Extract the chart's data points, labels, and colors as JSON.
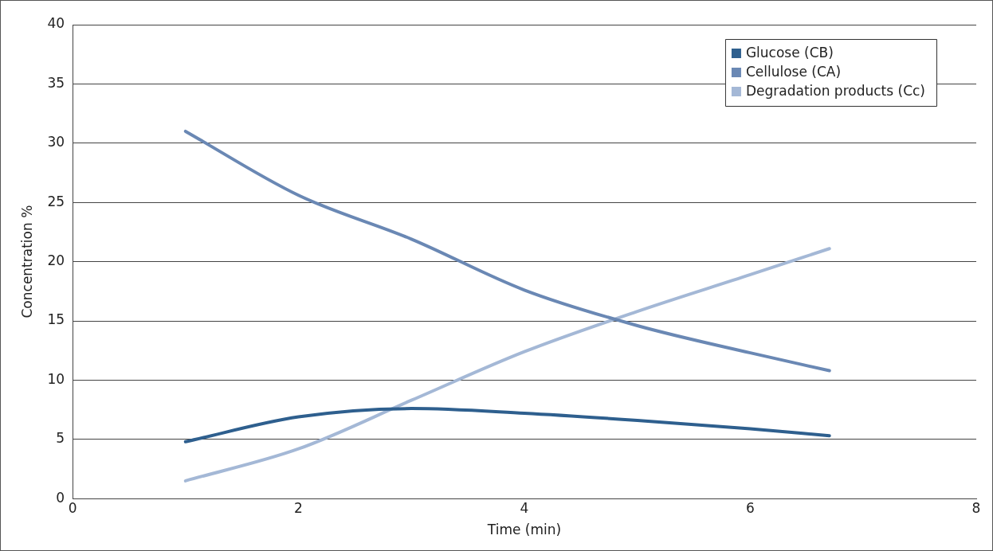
{
  "chart_data": {
    "type": "line",
    "xlabel": "Time (min)",
    "ylabel": "Concentration %",
    "xlim": [
      0,
      8
    ],
    "xticks": [
      0,
      2,
      4,
      6,
      8
    ],
    "ylim": [
      0,
      40
    ],
    "yticks": [
      0,
      5,
      10,
      15,
      20,
      25,
      30,
      35,
      40
    ],
    "grid": "y",
    "legend": "top right",
    "marker": "none",
    "line_style": "solid",
    "x": [
      1,
      2,
      3,
      4,
      5,
      6,
      6.7
    ],
    "series": [
      {
        "name": "Glucose (CB)",
        "color": "#2e5f8e",
        "values": [
          4.8,
          6.9,
          7.6,
          7.2,
          6.6,
          5.9,
          5.3
        ]
      },
      {
        "name": "Cellulose (CA)",
        "color": "#6a88b4",
        "values": [
          31,
          25.6,
          21.9,
          17.6,
          14.6,
          12.3,
          10.8
        ]
      },
      {
        "name": "Degradation products (Cc)",
        "color": "#a4b8d6",
        "values": [
          1.5,
          4.2,
          8.3,
          12.4,
          15.8,
          18.9,
          21.1
        ]
      }
    ]
  }
}
